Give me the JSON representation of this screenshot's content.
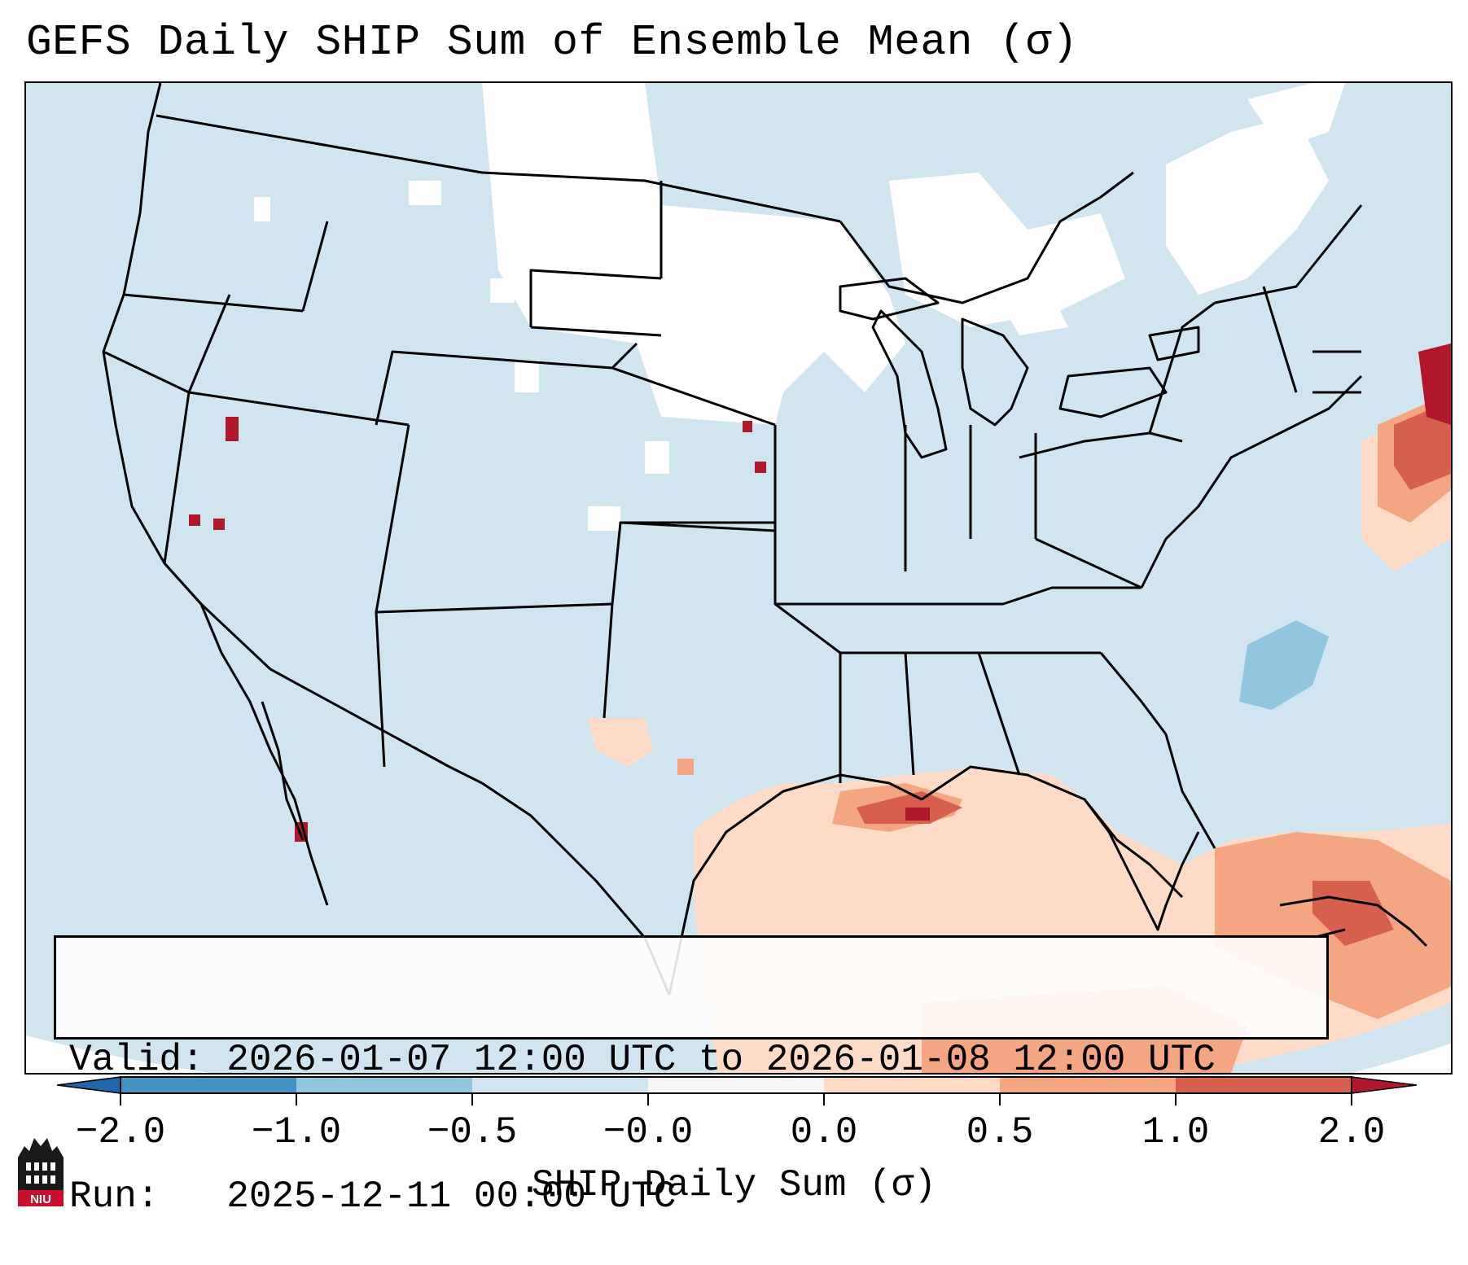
{
  "title": "GEFS Daily SHIP Sum of Ensemble Mean (σ)",
  "info": {
    "valid_line": "Valid: 2026-01-07 12:00 UTC to 2026-01-08 12:00 UTC",
    "run_line": "Run:   2025-12-11 00:00 UTC"
  },
  "colorbar": {
    "label": "SHIP Daily Sum (σ)",
    "ticks": [
      "−2.0",
      "−1.0",
      "−0.5",
      "−0.0",
      "0.0",
      "0.5",
      "1.0",
      "2.0"
    ],
    "colors": [
      "#2166ac",
      "#4393c3",
      "#92c5de",
      "#d1e5f0",
      "#f7f7f7",
      "#fddbc7",
      "#f4a582",
      "#d6604d",
      "#b2182b"
    ]
  },
  "logo": {
    "text": "NIU"
  },
  "map": {
    "region": "Continental United States",
    "projection": "Lambert Conformal",
    "background_class": "-0.5 to -0.0",
    "anomalies": [
      {
        "region": "Gulf of Mexico",
        "class": "0.0 to 0.5"
      },
      {
        "region": "Louisiana coast",
        "class": "1.0 to 2.0"
      },
      {
        "region": "Western Atlantic off New England",
        "class": "1.0 to 2.0"
      },
      {
        "region": "Bahamas / Caribbean",
        "class": "0.5 to 1.0"
      },
      {
        "region": "Off Carolina coast",
        "class": "-1.0 to -0.5"
      },
      {
        "region": "Northern Plains / Great Lakes",
        "class": "-0.0 to 0.0"
      }
    ]
  }
}
